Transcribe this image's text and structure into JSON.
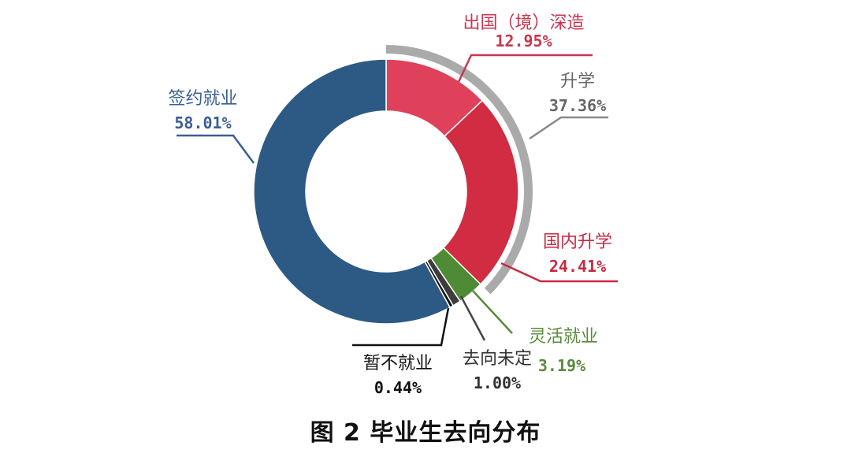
{
  "chart_data": {
    "type": "pie",
    "subtype": "donut",
    "title": "图 2  毕业生去向分布",
    "slices": [
      {
        "label": "出国（境）深造",
        "value": 12.95,
        "display": "12.95%",
        "color": "#e0415a"
      },
      {
        "label": "国内升学",
        "value": 24.41,
        "display": "24.41%",
        "color": "#d12c42"
      },
      {
        "label": "灵活就业",
        "value": 3.19,
        "display": "3.19%",
        "color": "#4f8a35"
      },
      {
        "label": "去向未定",
        "value": 1.0,
        "display": "1.00%",
        "color": "#3c3c3c"
      },
      {
        "label": "暂不就业",
        "value": 0.44,
        "display": "0.44%",
        "color": "#111111"
      },
      {
        "label": "签约就业",
        "value": 58.01,
        "display": "58.01%",
        "color": "#2d5a84"
      }
    ],
    "group_arc": {
      "label": "升学",
      "value": 37.36,
      "display": "37.36%",
      "color": "#aaaaaa",
      "covers": [
        "出国（境）深造",
        "国内升学"
      ]
    },
    "start_angle": "12 o'clock",
    "direction": "clockwise",
    "legend": "none (leader-line labels)"
  },
  "labels": {
    "abroad": {
      "name": "出国（境）深造",
      "pct": "12.95%",
      "color": "#c9364f"
    },
    "further": {
      "name": "升学",
      "pct": "37.36%",
      "color": "#666666"
    },
    "domestic": {
      "name": "国内升学",
      "pct": "24.41%",
      "color": "#c62a42"
    },
    "flexible": {
      "name": "灵活就业",
      "pct": "3.19%",
      "color": "#5a8a3a"
    },
    "undecided": {
      "name": "去向未定",
      "pct": "1.00%",
      "color": "#333333"
    },
    "notemployed": {
      "name": "暂不就业",
      "pct": "0.44%",
      "color": "#111111"
    },
    "signed": {
      "name": "签约就业",
      "pct": "58.01%",
      "color": "#3a5f94"
    }
  },
  "caption": "图 2  毕业生去向分布"
}
